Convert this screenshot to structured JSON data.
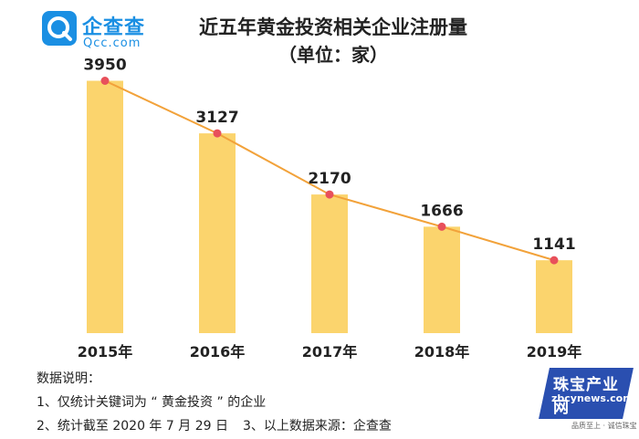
{
  "brand": {
    "name": "企查查",
    "domain": "Qcc.com",
    "color": "#1a8fe3"
  },
  "chart_data": {
    "type": "bar",
    "title": "近五年黄金投资相关企业注册量",
    "subtitle": "（单位：家）",
    "categories": [
      "2015年",
      "2016年",
      "2017年",
      "2018年",
      "2019年"
    ],
    "values": [
      3950,
      3127,
      2170,
      1666,
      1141
    ],
    "overlay_line": true,
    "bar_color": "#fbd46d",
    "line_color": "#f2a23a",
    "point_color": "#e8505b",
    "ylim": [
      0,
      4000
    ],
    "grid": false,
    "legend": "none"
  },
  "notes": {
    "heading": "数据说明：",
    "line1": "1、仅统计关键词为 “ 黄金投资 ” 的企业",
    "line2a": "2、统计截至 2020 年 7 月 29 日",
    "line2b": "3、以上数据来源：企查查"
  },
  "watermark": {
    "cn": "珠宝产业网",
    "en": "zbcynews.com",
    "slogan": "品质至上 · 诚信珠宝"
  }
}
